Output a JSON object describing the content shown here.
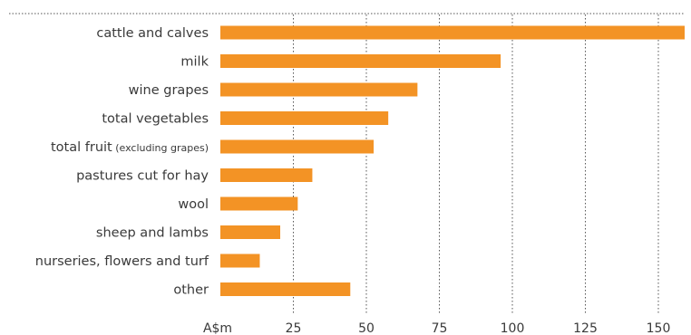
{
  "chart_data": {
    "type": "bar",
    "orientation": "horizontal",
    "categories": [
      {
        "label": "cattle and calves",
        "sub": ""
      },
      {
        "label": "milk",
        "sub": ""
      },
      {
        "label": "wine grapes",
        "sub": ""
      },
      {
        "label": "total vegetables",
        "sub": ""
      },
      {
        "label": "total fruit",
        "sub": "(excluding grapes)"
      },
      {
        "label": "pastures cut for hay",
        "sub": ""
      },
      {
        "label": "wool",
        "sub": ""
      },
      {
        "label": "sheep and lambs",
        "sub": ""
      },
      {
        "label": "nurseries, flowers and turf",
        "sub": ""
      },
      {
        "label": "other",
        "sub": ""
      }
    ],
    "values": [
      159,
      96,
      67.5,
      57.5,
      52.5,
      31.5,
      26.5,
      20.5,
      13.5,
      44.5
    ],
    "xlabel": "A$m",
    "xticks": [
      25,
      50,
      75,
      100,
      125,
      150
    ],
    "xlim": [
      0,
      160
    ],
    "grid": "vertical dotted",
    "bar_color": "#f39325"
  }
}
